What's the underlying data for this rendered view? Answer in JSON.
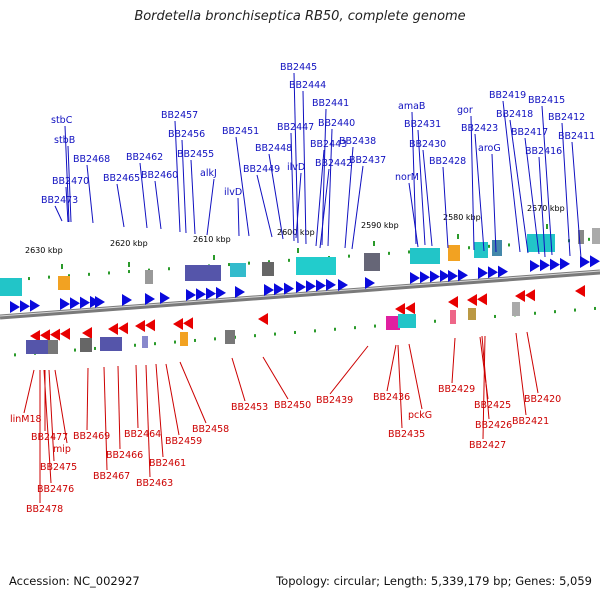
{
  "title": "Bordetella bronchiseptica RB50, complete genome",
  "footer": {
    "accession": "Accession: NC_002927",
    "summary": "Topology: circular; Length: 5,339,179 bp; Genes: 5,059"
  },
  "colors": {
    "top_strand": "#0a0adc",
    "bottom_strand": "#e80000",
    "top_label": "#1010c0",
    "bottom_label": "#cc0000",
    "tick": "#2a9a2a"
  },
  "ticks": [
    "2630 kbp",
    "2620 kbp",
    "2610 kbp",
    "2600 kbp",
    "2590 kbp",
    "2580 kbp",
    "2570 kbp"
  ],
  "top_genes": [
    "BB2445",
    "BB2444",
    "BB2441",
    "BB2440",
    "BB2443",
    "BB2442",
    "BB2438",
    "BB2437",
    "BB2447",
    "BB2448",
    "BB2449",
    "ilvD",
    "BB2451",
    "ilvD",
    "alkJ",
    "BB2455",
    "BB2456",
    "BB2457",
    "BB2460",
    "BB2462",
    "BB2465",
    "BB2468",
    "stbC",
    "stbB",
    "BB2470",
    "BB2473",
    "amaB",
    "BB2431",
    "BB2430",
    "norM",
    "BB2428",
    "gor",
    "BB2423",
    "aroG",
    "BB2419",
    "BB2418",
    "BB2417",
    "BB2415",
    "BB2412",
    "BB2416",
    "BB2411"
  ],
  "bottom_genes": [
    "linM18",
    "BB2477",
    "mip",
    "BB2475",
    "BB2476",
    "BB2478",
    "BB2469",
    "BB2467",
    "BB2466",
    "BB2464",
    "BB2463",
    "BB2461",
    "BB2459",
    "BB2458",
    "BB2453",
    "BB2450",
    "BB2439",
    "BB2436",
    "BB2435",
    "pckG",
    "BB2429",
    "BB2425",
    "BB2426",
    "BB2427",
    "BB2421",
    "BB2420"
  ]
}
